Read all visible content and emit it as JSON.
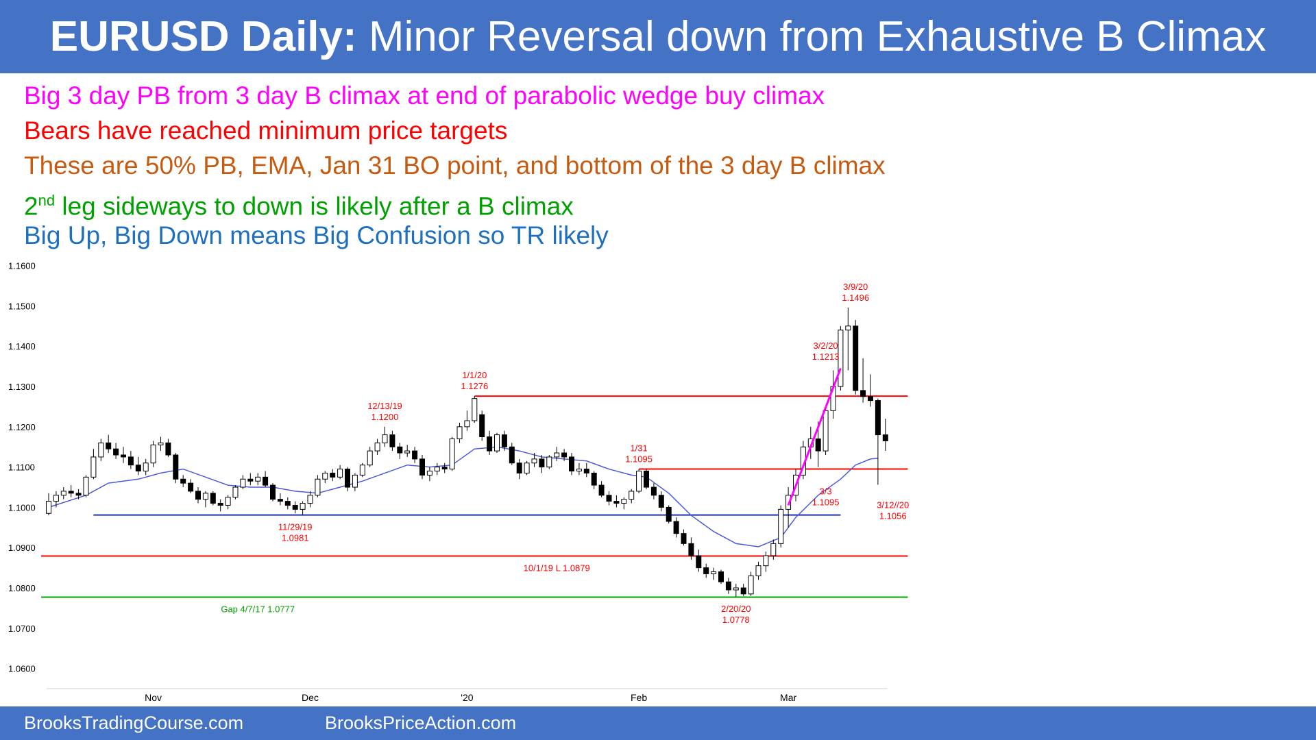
{
  "header": {
    "title_bold": "EURUSD Daily:",
    "title_rest": " Minor Reversal down from Exhaustive B Climax"
  },
  "bullets": [
    {
      "text": "Big 3 day PB from 3 day B climax at end of parabolic wedge buy climax",
      "color": "#ff00ff"
    },
    {
      "text": "Bears have reached minimum price targets",
      "color": "#ff0000"
    },
    {
      "text": "These are 50% PB, EMA, Jan 31 BO point, and bottom of the 3 day B climax",
      "color": "#c55a11"
    },
    {
      "prefix": "2",
      "sup": "nd",
      "text": " leg sideways to down is likely after a B climax",
      "color": "#00a000"
    },
    {
      "text": "Big Up, Big Down means Big Confusion so TR likely",
      "color": "#1f6fbf"
    }
  ],
  "footer": {
    "left": "BrooksTradingCourse.com",
    "right": "BrooksPriceAction.com"
  },
  "colors": {
    "banner": "#4472c4",
    "bull_candle": "#ffffff",
    "bear_candle": "#000000",
    "ema": "#4a5bd9",
    "resistance": "#ff0000",
    "support": "#1f2fbf",
    "gap": "#00a000",
    "trendline": "#ff00ff",
    "annotation": "#ff0000"
  },
  "chart_data": {
    "type": "candlestick",
    "title": "",
    "xlabel": "",
    "ylabel": "",
    "ylim": [
      1.055,
      1.163
    ],
    "y_ticks": [
      "1.1600",
      "1.1500",
      "1.1400",
      "1.1300",
      "1.1200",
      "1.1100",
      "1.1000",
      "1.0900",
      "1.0800",
      "1.0700",
      "1.0600"
    ],
    "x_ticks": [
      {
        "label": "Nov",
        "bar": 14
      },
      {
        "label": "Dec",
        "bar": 35
      },
      {
        "label": "'20",
        "bar": 56
      },
      {
        "label": "Feb",
        "bar": 79
      },
      {
        "label": "Mar",
        "bar": 99
      }
    ],
    "ohlc": [
      [
        1.0985,
        1.1035,
        1.098,
        1.1015
      ],
      [
        1.1015,
        1.104,
        1.1,
        1.103
      ],
      [
        1.103,
        1.105,
        1.102,
        1.104
      ],
      [
        1.104,
        1.1055,
        1.1025,
        1.1035
      ],
      [
        1.1035,
        1.1045,
        1.102,
        1.103
      ],
      [
        1.103,
        1.108,
        1.1025,
        1.1075
      ],
      [
        1.1075,
        1.1145,
        1.107,
        1.1125
      ],
      [
        1.1125,
        1.117,
        1.1115,
        1.116
      ],
      [
        1.116,
        1.118,
        1.1135,
        1.1145
      ],
      [
        1.1145,
        1.116,
        1.112,
        1.113
      ],
      [
        1.113,
        1.115,
        1.111,
        1.1125
      ],
      [
        1.1125,
        1.114,
        1.1095,
        1.1105
      ],
      [
        1.1105,
        1.1125,
        1.108,
        1.109
      ],
      [
        1.109,
        1.112,
        1.108,
        1.111
      ],
      [
        1.111,
        1.1165,
        1.11,
        1.1155
      ],
      [
        1.1155,
        1.1175,
        1.114,
        1.116
      ],
      [
        1.116,
        1.117,
        1.1125,
        1.113
      ],
      [
        1.113,
        1.1135,
        1.106,
        1.107
      ],
      [
        1.107,
        1.108,
        1.105,
        1.106
      ],
      [
        1.106,
        1.107,
        1.1035,
        1.104
      ],
      [
        1.104,
        1.105,
        1.101,
        1.102
      ],
      [
        1.102,
        1.104,
        1.1,
        1.1035
      ],
      [
        1.1035,
        1.104,
        1.1005,
        1.101
      ],
      [
        1.101,
        1.102,
        1.099,
        1.1005
      ],
      [
        1.1005,
        1.103,
        1.0995,
        1.1025
      ],
      [
        1.1025,
        1.1055,
        1.102,
        1.105
      ],
      [
        1.105,
        1.108,
        1.1045,
        1.107
      ],
      [
        1.107,
        1.1085,
        1.1055,
        1.1065
      ],
      [
        1.1065,
        1.1085,
        1.1055,
        1.1075
      ],
      [
        1.1075,
        1.109,
        1.105,
        1.1055
      ],
      [
        1.1055,
        1.106,
        1.1015,
        1.102
      ],
      [
        1.102,
        1.1035,
        1.1005,
        1.1015
      ],
      [
        1.1015,
        1.1025,
        1.0995,
        1.1005
      ],
      [
        1.1005,
        1.1015,
        1.0985,
        1.0995
      ],
      [
        1.0995,
        1.1015,
        1.0981,
        1.101
      ],
      [
        1.101,
        1.104,
        1.1,
        1.103
      ],
      [
        1.103,
        1.108,
        1.1025,
        1.107
      ],
      [
        1.107,
        1.109,
        1.106,
        1.1085
      ],
      [
        1.1085,
        1.1095,
        1.1065,
        1.1075
      ],
      [
        1.1075,
        1.1105,
        1.107,
        1.1095
      ],
      [
        1.1095,
        1.11,
        1.104,
        1.105
      ],
      [
        1.105,
        1.1085,
        1.104,
        1.108
      ],
      [
        1.108,
        1.111,
        1.1075,
        1.1105
      ],
      [
        1.1105,
        1.115,
        1.11,
        1.114
      ],
      [
        1.114,
        1.117,
        1.113,
        1.116
      ],
      [
        1.116,
        1.12,
        1.115,
        1.118
      ],
      [
        1.118,
        1.119,
        1.114,
        1.115
      ],
      [
        1.115,
        1.116,
        1.112,
        1.1135
      ],
      [
        1.1135,
        1.1155,
        1.1125,
        1.114
      ],
      [
        1.114,
        1.115,
        1.111,
        1.112
      ],
      [
        1.112,
        1.113,
        1.107,
        1.108
      ],
      [
        1.108,
        1.11,
        1.1065,
        1.109
      ],
      [
        1.109,
        1.111,
        1.108,
        1.11
      ],
      [
        1.11,
        1.111,
        1.1085,
        1.1095
      ],
      [
        1.1095,
        1.1175,
        1.109,
        1.117
      ],
      [
        1.117,
        1.121,
        1.116,
        1.12
      ],
      [
        1.12,
        1.124,
        1.119,
        1.1215
      ],
      [
        1.1215,
        1.1276,
        1.121,
        1.127
      ],
      [
        1.123,
        1.124,
        1.1165,
        1.1175
      ],
      [
        1.1175,
        1.119,
        1.113,
        1.114
      ],
      [
        1.114,
        1.1185,
        1.1135,
        1.118
      ],
      [
        1.118,
        1.119,
        1.114,
        1.115
      ],
      [
        1.115,
        1.116,
        1.1105,
        1.111
      ],
      [
        1.111,
        1.112,
        1.107,
        1.1085
      ],
      [
        1.1085,
        1.1115,
        1.108,
        1.111
      ],
      [
        1.111,
        1.1135,
        1.11,
        1.112
      ],
      [
        1.112,
        1.113,
        1.1085,
        1.11
      ],
      [
        1.11,
        1.113,
        1.1095,
        1.1125
      ],
      [
        1.1125,
        1.115,
        1.1115,
        1.1135
      ],
      [
        1.1135,
        1.1145,
        1.1115,
        1.1125
      ],
      [
        1.1125,
        1.1135,
        1.108,
        1.109
      ],
      [
        1.109,
        1.111,
        1.108,
        1.1095
      ],
      [
        1.1095,
        1.111,
        1.1075,
        1.1085
      ],
      [
        1.1085,
        1.109,
        1.1045,
        1.1055
      ],
      [
        1.1055,
        1.1065,
        1.1025,
        1.103
      ],
      [
        1.103,
        1.104,
        1.1005,
        1.1015
      ],
      [
        1.1015,
        1.103,
        1.1,
        1.101
      ],
      [
        1.101,
        1.1025,
        1.0995,
        1.102
      ],
      [
        1.102,
        1.1045,
        1.101,
        1.104
      ],
      [
        1.104,
        1.1095,
        1.1035,
        1.109
      ],
      [
        1.109,
        1.1095,
        1.1045,
        1.105
      ],
      [
        1.105,
        1.106,
        1.102,
        1.103
      ],
      [
        1.103,
        1.104,
        1.099,
        1.1
      ],
      [
        1.1,
        1.1005,
        1.096,
        1.0965
      ],
      [
        1.0965,
        1.0975,
        1.0925,
        1.0935
      ],
      [
        1.0935,
        1.0945,
        1.0905,
        1.091
      ],
      [
        1.091,
        1.0925,
        1.087,
        1.088
      ],
      [
        1.088,
        1.0895,
        1.084,
        1.085
      ],
      [
        1.085,
        1.086,
        1.0825,
        1.0835
      ],
      [
        1.0835,
        1.085,
        1.082,
        1.084
      ],
      [
        1.084,
        1.0845,
        1.081,
        1.0815
      ],
      [
        1.0815,
        1.0825,
        1.0785,
        1.0795
      ],
      [
        1.0795,
        1.081,
        1.0778,
        1.08
      ],
      [
        1.08,
        1.081,
        1.078,
        1.0785
      ],
      [
        1.0785,
        1.084,
        1.078,
        1.083
      ],
      [
        1.083,
        1.0865,
        1.082,
        1.0855
      ],
      [
        1.0855,
        1.089,
        1.084,
        1.088
      ],
      [
        1.088,
        1.092,
        1.087,
        1.091
      ],
      [
        1.091,
        1.1005,
        1.09,
        1.0995
      ],
      [
        1.0995,
        1.105,
        1.095,
        1.103
      ],
      [
        1.103,
        1.1095,
        1.1015,
        1.108
      ],
      [
        1.108,
        1.1165,
        1.107,
        1.115
      ],
      [
        1.115,
        1.12,
        1.112,
        1.117
      ],
      [
        1.117,
        1.1213,
        1.11,
        1.114
      ],
      [
        1.114,
        1.125,
        1.113,
        1.124
      ],
      [
        1.124,
        1.134,
        1.122,
        1.13
      ],
      [
        1.13,
        1.145,
        1.129,
        1.144
      ],
      [
        1.144,
        1.1496,
        1.134,
        1.145
      ],
      [
        1.145,
        1.1465,
        1.128,
        1.129
      ],
      [
        1.129,
        1.137,
        1.126,
        1.1275
      ],
      [
        1.1275,
        1.133,
        1.125,
        1.1265
      ],
      [
        1.1265,
        1.127,
        1.1056,
        1.118
      ],
      [
        1.118,
        1.122,
        1.114,
        1.1165
      ]
    ],
    "ema": [
      [
        0,
        1.1
      ],
      [
        5,
        1.103
      ],
      [
        8,
        1.106
      ],
      [
        12,
        1.107
      ],
      [
        15,
        1.1085
      ],
      [
        18,
        1.1095
      ],
      [
        21,
        1.1075
      ],
      [
        24,
        1.1055
      ],
      [
        27,
        1.105
      ],
      [
        30,
        1.105
      ],
      [
        33,
        1.104
      ],
      [
        36,
        1.1035
      ],
      [
        39,
        1.105
      ],
      [
        42,
        1.1065
      ],
      [
        45,
        1.1085
      ],
      [
        48,
        1.1105
      ],
      [
        51,
        1.11
      ],
      [
        54,
        1.1105
      ],
      [
        57,
        1.1145
      ],
      [
        60,
        1.115
      ],
      [
        63,
        1.114
      ],
      [
        66,
        1.1125
      ],
      [
        69,
        1.112
      ],
      [
        72,
        1.1115
      ],
      [
        75,
        1.1095
      ],
      [
        78,
        1.108
      ],
      [
        80,
        1.1075
      ],
      [
        83,
        1.1035
      ],
      [
        86,
        1.098
      ],
      [
        89,
        1.094
      ],
      [
        92,
        1.091
      ],
      [
        95,
        1.0902
      ],
      [
        98,
        1.0925
      ],
      [
        100,
        1.0975
      ],
      [
        103,
        1.103
      ],
      [
        106,
        1.107
      ],
      [
        108,
        1.1105
      ],
      [
        110,
        1.112
      ],
      [
        111,
        1.1122
      ]
    ],
    "lines": [
      {
        "name": "1/1/20 high",
        "value": 1.1276,
        "from": 57,
        "to": 115,
        "color": "#ff0000"
      },
      {
        "name": "1/31 high",
        "value": 1.1095,
        "from": 79,
        "to": 115,
        "color": "#ff0000"
      },
      {
        "name": "11/29/19 low",
        "value": 1.0981,
        "from": 6,
        "to": 106,
        "color": "#1f2fbf"
      },
      {
        "name": "10/1/19 low",
        "value": 1.0879,
        "from": -1,
        "to": 115,
        "color": "#ff0000"
      },
      {
        "name": "Gap 4/7/17",
        "value": 1.0777,
        "from": -1,
        "to": 115,
        "color": "#00a000"
      }
    ],
    "trendline": {
      "from": [
        99,
        1.1005
      ],
      "to": [
        106,
        1.1345
      ],
      "color": "#ff00ff"
    },
    "annotations": [
      {
        "lines": [
          "3/9/20",
          "1.1496"
        ],
        "bar": 108,
        "value": 1.1496,
        "pos": "above"
      },
      {
        "lines": [
          "1/1/20",
          "1.1276"
        ],
        "bar": 57,
        "value": 1.1276,
        "pos": "above"
      },
      {
        "lines": [
          "12/13/19",
          "1.1200"
        ],
        "bar": 45,
        "value": 1.12,
        "pos": "above"
      },
      {
        "lines": [
          "3/2/20",
          "1.1213"
        ],
        "bar": 104,
        "value": 1.1213,
        "pos": "above",
        "dx": 0,
        "dy": -80
      },
      {
        "lines": [
          "1/31",
          "1.1095"
        ],
        "bar": 79,
        "value": 1.1095,
        "pos": "above"
      },
      {
        "lines": [
          "3/3",
          "1.1095"
        ],
        "bar": 104,
        "value": 1.1095,
        "pos": "below",
        "dx": 0,
        "dy": 15
      },
      {
        "lines": [
          "3/12//20",
          "1.1056"
        ],
        "bar": 113,
        "value": 1.1056,
        "pos": "below",
        "dx": 0,
        "dy": 12
      },
      {
        "lines": [
          "11/29/19",
          "1.0981"
        ],
        "bar": 33,
        "value": 1.0981,
        "pos": "below"
      },
      {
        "lines": [
          "10/1/19 L 1.0879"
        ],
        "bar": 68,
        "value": 1.0879,
        "pos": "below"
      },
      {
        "lines": [
          "Gap 4/7/17 1.0777"
        ],
        "bar": 28,
        "value": 1.0777,
        "pos": "below"
      },
      {
        "lines": [
          "2/20/20",
          "1.0778"
        ],
        "bar": 92,
        "value": 1.0778,
        "pos": "below"
      }
    ]
  }
}
